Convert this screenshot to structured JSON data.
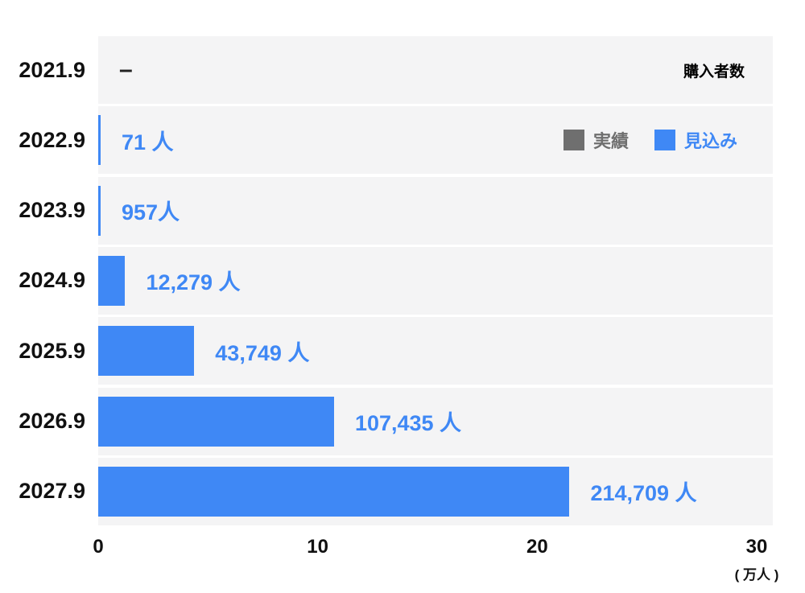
{
  "chart_data": {
    "type": "bar",
    "orientation": "horizontal",
    "title": "購入者数",
    "unit_label": "( 万人 )",
    "categories": [
      "2021.9",
      "2022.9",
      "2023.9",
      "2024.9",
      "2025.9",
      "2026.9",
      "2027.9"
    ],
    "values_people": [
      null,
      71,
      957,
      12279,
      43749,
      107435,
      214709
    ],
    "value_labels": [
      "–",
      "71 人",
      "957人",
      "12,279 人",
      "43,749 人",
      "107,435 人",
      "214,709 人"
    ],
    "x_ticks": [
      "0",
      "10",
      "20",
      "30"
    ],
    "x_tick_values": [
      0,
      10,
      20,
      30
    ],
    "xlim": [
      0,
      30
    ],
    "people_per_axis_unit": 10000,
    "grid": false,
    "legend_position": "top-right-inside",
    "legend": [
      {
        "label": "実績",
        "color": "#6f6f6f"
      },
      {
        "label": "見込み",
        "color": "#3f88f5"
      }
    ],
    "colors": {
      "bar": "#3f88f5",
      "row_band": "#f4f4f5",
      "value_text": "#3f88f5",
      "dash_text": "#222222",
      "axis_text": "#111111"
    }
  }
}
